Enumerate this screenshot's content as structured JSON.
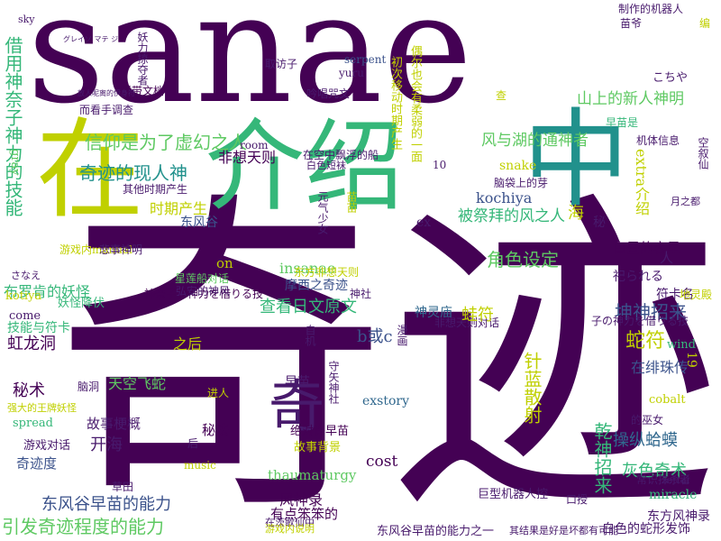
{
  "cloud": {
    "colors": [
      "#440154",
      "#3b528b",
      "#21918c",
      "#5ec962",
      "#fde725",
      "#31688e",
      "#35b779",
      "#90d743",
      "#481a6c",
      "#c0d000"
    ],
    "words": [
      {
        "text": "sanae",
        "c": 0
      },
      {
        "text": "奇迹",
        "c": 0
      },
      {
        "text": "在",
        "c": 9
      },
      {
        "text": "介绍",
        "c": 6
      },
      {
        "text": "中",
        "c": 2
      },
      {
        "text": "奇",
        "c": 8
      },
      {
        "text": "借用神奈子神力的技能",
        "c": 6
      },
      {
        "text": "信仰是为了虚幻之人",
        "c": 3
      },
      {
        "text": "奇迹的现人神",
        "c": 2
      },
      {
        "text": "引发奇迹程度的能力",
        "c": 3
      },
      {
        "text": "东风谷早苗的能力",
        "c": 1
      },
      {
        "text": "山上的新人神明",
        "c": 3
      },
      {
        "text": "风与湖的通神者",
        "c": 3
      },
      {
        "text": "被祭拜的风之人",
        "c": 6
      },
      {
        "text": "查看日文原文",
        "c": 6
      },
      {
        "text": "角色设定",
        "c": 3
      },
      {
        "text": "坤神招来",
        "c": 1
      },
      {
        "text": "蛇符",
        "c": 9
      },
      {
        "text": "乾神招来",
        "c": 6
      },
      {
        "text": "虹龙洞",
        "c": 0
      },
      {
        "text": "布罗肯的妖怪",
        "c": 6
      },
      {
        "text": "神奈子の神力を借りる技",
        "c": 0
      },
      {
        "text": "摩西之奇迹",
        "c": 1
      },
      {
        "text": "操纵蛤蟆",
        "c": 5
      },
      {
        "text": "秘术",
        "c": 0
      },
      {
        "text": "开海",
        "c": 8
      },
      {
        "text": "风神录",
        "c": 0
      },
      {
        "text": "巨型机器人控",
        "c": 8
      },
      {
        "text": "在绯珠传",
        "c": 1
      },
      {
        "text": "miracle",
        "c": 6
      },
      {
        "text": "cobalt",
        "c": 9
      },
      {
        "text": "thaumaturgy",
        "c": 3
      },
      {
        "text": "extra介绍",
        "c": 9
      },
      {
        "text": "kochiya",
        "c": 1
      },
      {
        "text": "insanae",
        "c": 3
      },
      {
        "text": "snake",
        "c": 9
      },
      {
        "text": "cost",
        "c": 0
      },
      {
        "text": "exstory",
        "c": 5
      },
      {
        "text": "符卡名",
        "c": 8
      },
      {
        "text": "灰色奇术",
        "c": 6
      },
      {
        "text": "天空飞蛇",
        "c": 3
      },
      {
        "text": "时期产生",
        "c": 9
      },
      {
        "text": "非想天则",
        "c": 0
      },
      {
        "text": "东风谷",
        "c": 1
      },
      {
        "text": "白昼的客星",
        "c": 0
      },
      {
        "text": "故事梗概",
        "c": 8
      },
      {
        "text": "秘法",
        "c": 0
      },
      {
        "text": "奇迹度",
        "c": 1
      },
      {
        "text": "游戏对话",
        "c": 8
      },
      {
        "text": "b或c",
        "c": 1
      },
      {
        "text": "技能与符卡",
        "c": 6
      },
      {
        "text": "妖怪降伏",
        "c": 6
      },
      {
        "text": "针蓝散射",
        "c": 9
      },
      {
        "text": "神灵庙",
        "c": 5
      },
      {
        "text": "祀られる",
        "c": 8
      },
      {
        "text": "之后",
        "c": 9
      },
      {
        "text": "有点笨笨的",
        "c": 0
      },
      {
        "text": "白色的蛇形发饰",
        "c": 8
      },
      {
        "text": "东方风神录",
        "c": 8
      },
      {
        "text": "故事背景",
        "c": 9
      },
      {
        "text": "绝对许早苗",
        "c": 0
      },
      {
        "text": "东风谷早苗的能力之一",
        "c": 8
      },
      {
        "text": "其他时期产生",
        "c": 8
      },
      {
        "text": "子の神力を借りる技",
        "c": 8
      },
      {
        "text": "spread",
        "c": 6
      },
      {
        "text": "kotiya",
        "c": 9
      },
      {
        "text": "come",
        "c": 8
      },
      {
        "text": "wind",
        "c": 6
      },
      {
        "text": "制作的机器人",
        "c": 8
      },
      {
        "text": "苗爷",
        "c": 8
      },
      {
        "text": "早苗是",
        "c": 6
      },
      {
        "text": "月之都",
        "c": 8
      },
      {
        "text": "机体信息",
        "c": 8
      },
      {
        "text": "星莲船对话",
        "c": 3
      },
      {
        "text": "弘安的神风",
        "c": 8
      },
      {
        "text": "东方非想天则",
        "c": 9
      },
      {
        "text": "非想天则对话",
        "c": 8
      },
      {
        "text": "常识抹杀者",
        "c": 8
      },
      {
        "text": "zettai",
        "c": 8
      },
      {
        "text": "附带文档",
        "c": 0
      },
      {
        "text": "取访子",
        "c": 8
      },
      {
        "text": "吟唱咒文",
        "c": 8
      },
      {
        "text": "serpent",
        "c": 1
      },
      {
        "text": "yuru",
        "c": 8
      },
      {
        "text": "妖力掠夺者",
        "c": 8
      },
      {
        "text": "在空中飘浮的船",
        "c": 8
      },
      {
        "text": "白色短袜",
        "c": 8
      },
      {
        "text": "脑袋上的芽",
        "c": 8
      },
      {
        "text": "空叙仙",
        "c": 8
      },
      {
        "text": "海",
        "c": 9
      },
      {
        "text": "秘",
        "c": 8
      },
      {
        "text": "人",
        "c": 8
      },
      {
        "text": "ex",
        "c": 8
      },
      {
        "text": "早苗",
        "c": 8
      },
      {
        "text": "on",
        "c": 9
      },
      {
        "text": "sky",
        "c": 8
      },
      {
        "text": "gray",
        "c": 3
      },
      {
        "text": "こちや",
        "c": 8
      },
      {
        "text": "编",
        "c": 9
      },
      {
        "text": "进人",
        "c": 9
      },
      {
        "text": "后",
        "c": 8
      },
      {
        "text": "music",
        "c": 9
      },
      {
        "text": "草田",
        "c": 8
      },
      {
        "text": "游戏内manual",
        "c": 9
      },
      {
        "text": "悲事神明",
        "c": 8
      },
      {
        "text": "さなえ",
        "c": 8
      },
      {
        "text": "room",
        "c": 8
      },
      {
        "text": "19",
        "c": 9
      },
      {
        "text": "10",
        "c": 8
      },
      {
        "text": "神社",
        "c": 8
      },
      {
        "text": "自机",
        "c": 8
      },
      {
        "text": "地灵殿",
        "c": 9
      },
      {
        "text": "的巫女",
        "c": 8
      },
      {
        "text": "口授",
        "c": 8
      },
      {
        "text": "查",
        "c": 9
      },
      {
        "text": "漫画",
        "c": 8
      },
      {
        "text": "强大的王牌妖怪",
        "c": 9
      },
      {
        "text": "脑洞",
        "c": 8
      },
      {
        "text": "在茨歌仙中",
        "c": 8
      },
      {
        "text": "游戏内说明",
        "c": 9
      },
      {
        "text": "守矢神社",
        "c": 8
      },
      {
        "text": "蛙符",
        "c": 9
      },
      {
        "text": "其结果是好是坏都有可能",
        "c": 8
      },
      {
        "text": "元气少女",
        "c": 8
      },
      {
        "text": "苗苗",
        "c": 9
      },
      {
        "text": "初次移动时期产生",
        "c": 9
      },
      {
        "text": "偶尔也会有柔弱的一面",
        "c": 9
      },
      {
        "text": "而看手调查",
        "c": 8
      },
      {
        "text": "放人呢离的伊身符",
        "c": 8
      },
      {
        "text": "グレイソ マテ ジ",
        "c": 8
      }
    ]
  }
}
